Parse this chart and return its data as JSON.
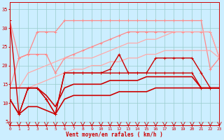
{
  "title": "",
  "xlabel": "Vent moyen/en rafales ( km/h )",
  "bg_color": "#cceeff",
  "grid_color": "#99cccc",
  "x_ticks": [
    0,
    1,
    2,
    3,
    4,
    5,
    6,
    7,
    8,
    9,
    10,
    11,
    12,
    13,
    14,
    15,
    16,
    17,
    18,
    19,
    20,
    21,
    22,
    23
  ],
  "y_ticks": [
    5,
    10,
    15,
    20,
    25,
    30,
    35
  ],
  "ylim": [
    4,
    37
  ],
  "xlim": [
    0,
    23
  ],
  "series": [
    {
      "x": [
        0,
        1,
        2,
        3,
        4,
        5,
        6,
        7,
        8,
        9,
        10,
        11,
        12,
        13,
        14,
        15,
        16,
        17,
        18,
        19,
        20,
        21,
        22,
        23
      ],
      "y": [
        32,
        22,
        23,
        29,
        29,
        29,
        32,
        32,
        32,
        32,
        32,
        32,
        32,
        32,
        32,
        32,
        32,
        32,
        32,
        32,
        32,
        32,
        19,
        22
      ],
      "color": "#ff8888",
      "lw": 0.9,
      "marker": "+"
    },
    {
      "x": [
        0,
        1,
        2,
        3,
        4,
        5,
        6,
        7,
        8,
        9,
        10,
        11,
        12,
        13,
        14,
        15,
        16,
        17,
        18,
        19,
        20,
        21,
        22,
        23
      ],
      "y": [
        14,
        22,
        23,
        23,
        23,
        18,
        22,
        23,
        24,
        25,
        26,
        27,
        28,
        29,
        29,
        29,
        29,
        29,
        29,
        29,
        29,
        29,
        29,
        22
      ],
      "color": "#ff8888",
      "lw": 0.9,
      "marker": "+"
    },
    {
      "x": [
        0,
        1,
        2,
        3,
        4,
        5,
        6,
        7,
        8,
        9,
        10,
        11,
        12,
        13,
        14,
        15,
        16,
        17,
        18,
        19,
        20,
        21,
        22,
        23
      ],
      "y": [
        14,
        14,
        18,
        19,
        20,
        21,
        22,
        22,
        22,
        22,
        23,
        24,
        25,
        26,
        26,
        27,
        27,
        28,
        29,
        29,
        29,
        29,
        29,
        22
      ],
      "color": "#ffaaaa",
      "lw": 0.9,
      "marker": null
    },
    {
      "x": [
        0,
        1,
        2,
        3,
        4,
        5,
        6,
        7,
        8,
        9,
        10,
        11,
        12,
        13,
        14,
        15,
        16,
        17,
        18,
        19,
        20,
        21,
        22,
        23
      ],
      "y": [
        14,
        14,
        14,
        15,
        16,
        17,
        18,
        19,
        19,
        20,
        20,
        21,
        21,
        22,
        22,
        23,
        23,
        24,
        24,
        24,
        24,
        24,
        24,
        22
      ],
      "color": "#ffaaaa",
      "lw": 0.9,
      "marker": null
    },
    {
      "x": [
        0,
        1,
        2,
        3,
        4,
        5,
        6,
        7,
        8,
        9,
        10,
        11,
        12,
        13,
        14,
        15,
        16,
        17,
        18,
        19,
        20,
        21,
        22,
        23
      ],
      "y": [
        11,
        7,
        14,
        14,
        11,
        7,
        18,
        18,
        18,
        18,
        18,
        19,
        23,
        18,
        18,
        18,
        22,
        22,
        22,
        22,
        22,
        18,
        14,
        14
      ],
      "color": "#cc0000",
      "lw": 1.0,
      "marker": "+"
    },
    {
      "x": [
        0,
        1,
        2,
        3,
        4,
        5,
        6,
        7,
        8,
        9,
        10,
        11,
        12,
        13,
        14,
        15,
        16,
        17,
        18,
        19,
        20,
        21,
        22,
        23
      ],
      "y": [
        32,
        7,
        14,
        14,
        11,
        7,
        18,
        18,
        18,
        18,
        18,
        18,
        18,
        18,
        18,
        18,
        18,
        18,
        18,
        18,
        18,
        14,
        14,
        14
      ],
      "color": "#cc0000",
      "lw": 1.0,
      "marker": "+"
    },
    {
      "x": [
        0,
        1,
        2,
        3,
        4,
        5,
        6,
        7,
        8,
        9,
        10,
        11,
        12,
        13,
        14,
        15,
        16,
        17,
        18,
        19,
        20,
        21,
        22,
        23
      ],
      "y": [
        14,
        14,
        14,
        14,
        12,
        9,
        14,
        15,
        15,
        15,
        15,
        16,
        16,
        16,
        16,
        17,
        17,
        17,
        17,
        17,
        17,
        14,
        14,
        14
      ],
      "color": "#cc0000",
      "lw": 1.2,
      "marker": null
    },
    {
      "x": [
        0,
        1,
        2,
        3,
        4,
        5,
        6,
        7,
        8,
        9,
        10,
        11,
        12,
        13,
        14,
        15,
        16,
        17,
        18,
        19,
        20,
        21,
        22,
        23
      ],
      "y": [
        11,
        7,
        9,
        9,
        8,
        7,
        11,
        12,
        12,
        12,
        12,
        12,
        13,
        13,
        13,
        13,
        14,
        14,
        14,
        14,
        14,
        14,
        14,
        14
      ],
      "color": "#cc0000",
      "lw": 1.2,
      "marker": null
    }
  ]
}
